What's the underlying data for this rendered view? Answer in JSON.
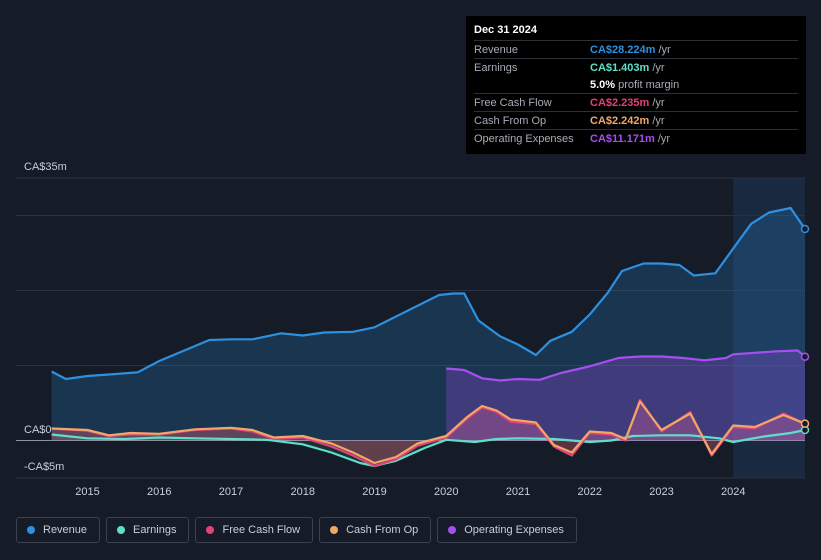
{
  "tooltip": {
    "date": "Dec 31 2024",
    "rows": [
      {
        "label": "Revenue",
        "value": "CA$28.224m",
        "unit": "/yr",
        "color": "#2e90e0"
      },
      {
        "label": "Earnings",
        "value": "CA$1.403m",
        "unit": "/yr",
        "color": "#5ee0c8"
      },
      {
        "label": "",
        "value": "5.0%",
        "unit": "profit margin",
        "color": "#ffffff"
      },
      {
        "label": "Free Cash Flow",
        "value": "CA$2.235m",
        "unit": "/yr",
        "color": "#e0437a"
      },
      {
        "label": "Cash From Op",
        "value": "CA$2.242m",
        "unit": "/yr",
        "color": "#f0a868"
      },
      {
        "label": "Operating Expenses",
        "value": "CA$11.171m",
        "unit": "/yr",
        "color": "#a64ff0"
      }
    ]
  },
  "legend": [
    {
      "label": "Revenue",
      "color": "#2e90e0"
    },
    {
      "label": "Earnings",
      "color": "#5ee0c8"
    },
    {
      "label": "Free Cash Flow",
      "color": "#e0437a"
    },
    {
      "label": "Cash From Op",
      "color": "#f0a868"
    },
    {
      "label": "Operating Expenses",
      "color": "#a64ff0"
    }
  ],
  "chart_data": {
    "type": "area",
    "title": "",
    "ylim": [
      -5,
      35
    ],
    "y_tick_labels": [
      {
        "value": 35,
        "label": "CA$35m"
      },
      {
        "value": 0,
        "label": "CA$0"
      },
      {
        "value": -5,
        "label": "-CA$5m"
      }
    ],
    "x_tick_labels": [
      "2015",
      "2016",
      "2017",
      "2018",
      "2019",
      "2020",
      "2021",
      "2022",
      "2023",
      "2024"
    ],
    "x_ticks": [
      2015,
      2016,
      2017,
      2018,
      2019,
      2020,
      2021,
      2022,
      2023,
      2024
    ],
    "xlim": [
      2014.45,
      2025.0
    ],
    "highlight_from": 2024.0,
    "series": [
      {
        "name": "Revenue",
        "color": "#2e90e0",
        "x": [
          2014.5,
          2014.7,
          2015.0,
          2015.3,
          2015.7,
          2016.0,
          2016.3,
          2016.7,
          2017.0,
          2017.3,
          2017.7,
          2018.0,
          2018.3,
          2018.7,
          2019.0,
          2019.5,
          2019.9,
          2020.1,
          2020.25,
          2020.45,
          2020.75,
          2021.0,
          2021.25,
          2021.45,
          2021.75,
          2022.0,
          2022.25,
          2022.45,
          2022.75,
          2023.0,
          2023.25,
          2023.45,
          2023.75,
          2024.0,
          2024.25,
          2024.5,
          2024.8,
          2025.0
        ],
        "values": [
          9.2,
          8.2,
          8.6,
          8.8,
          9.1,
          10.6,
          11.8,
          13.4,
          13.5,
          13.5,
          14.3,
          14.0,
          14.4,
          14.5,
          15.1,
          17.5,
          19.4,
          19.6,
          19.6,
          16.0,
          13.9,
          12.8,
          11.4,
          13.3,
          14.5,
          16.8,
          19.7,
          22.6,
          23.6,
          23.6,
          23.4,
          22.0,
          22.3,
          25.6,
          28.9,
          30.4,
          31.0,
          28.2
        ]
      },
      {
        "name": "Earnings",
        "color": "#5ee0c8",
        "x": [
          2014.5,
          2015.0,
          2015.5,
          2016.0,
          2016.5,
          2017.0,
          2017.5,
          2018.0,
          2018.4,
          2018.8,
          2019.0,
          2019.3,
          2019.7,
          2020.0,
          2020.4,
          2020.7,
          2021.0,
          2021.5,
          2022.0,
          2022.3,
          2022.6,
          2023.0,
          2023.4,
          2023.8,
          2024.0,
          2024.4,
          2024.8,
          2025.0
        ],
        "values": [
          0.8,
          0.3,
          0.2,
          0.4,
          0.3,
          0.2,
          0.1,
          -0.5,
          -1.6,
          -3.0,
          -3.4,
          -2.7,
          -1.0,
          0.1,
          -0.2,
          0.2,
          0.3,
          0.2,
          -0.2,
          0.0,
          0.6,
          0.7,
          0.7,
          0.3,
          -0.2,
          0.5,
          1.0,
          1.4
        ]
      },
      {
        "name": "Free Cash Flow",
        "color": "#e0437a",
        "x": [
          2014.5,
          2015.0,
          2015.3,
          2015.6,
          2016.0,
          2016.5,
          2017.0,
          2017.3,
          2017.6,
          2018.0,
          2018.4,
          2018.7,
          2019.0,
          2019.3,
          2019.6,
          2020.0,
          2020.3,
          2020.5,
          2020.7,
          2020.9,
          2021.25,
          2021.5,
          2021.75,
          2022.0,
          2022.3,
          2022.5,
          2022.7,
          2023.0,
          2023.4,
          2023.7,
          2024.0,
          2024.3,
          2024.7,
          2025.0
        ],
        "values": [
          1.6,
          1.3,
          0.6,
          0.8,
          0.8,
          1.4,
          1.6,
          1.2,
          0.2,
          0.4,
          -0.8,
          -2.0,
          -3.4,
          -2.5,
          -0.7,
          0.4,
          3.0,
          4.4,
          3.8,
          2.5,
          2.2,
          -0.8,
          -2.0,
          1.0,
          0.8,
          0.0,
          5.4,
          1.2,
          3.8,
          -2.0,
          1.8,
          1.6,
          3.6,
          2.235
        ]
      },
      {
        "name": "Cash From Op",
        "color": "#f0a868",
        "x": [
          2014.5,
          2015.0,
          2015.3,
          2015.6,
          2016.0,
          2016.5,
          2017.0,
          2017.3,
          2017.6,
          2018.0,
          2018.4,
          2018.7,
          2019.0,
          2019.3,
          2019.6,
          2020.0,
          2020.3,
          2020.5,
          2020.7,
          2020.9,
          2021.25,
          2021.5,
          2021.75,
          2022.0,
          2022.3,
          2022.5,
          2022.7,
          2023.0,
          2023.4,
          2023.7,
          2024.0,
          2024.3,
          2024.7,
          2025.0
        ],
        "values": [
          1.6,
          1.4,
          0.7,
          1.0,
          0.9,
          1.5,
          1.7,
          1.4,
          0.4,
          0.6,
          -0.4,
          -1.6,
          -3.0,
          -2.2,
          -0.4,
          0.6,
          3.2,
          4.6,
          4.0,
          2.8,
          2.4,
          -0.6,
          -1.6,
          1.2,
          1.0,
          0.2,
          5.2,
          1.4,
          3.6,
          -1.8,
          2.0,
          1.8,
          3.4,
          2.242
        ]
      },
      {
        "name": "Operating Expenses",
        "color": "#a64ff0",
        "x": [
          2020.0,
          2020.25,
          2020.5,
          2020.75,
          2021.0,
          2021.3,
          2021.6,
          2022.0,
          2022.4,
          2022.7,
          2023.0,
          2023.3,
          2023.6,
          2023.9,
          2024.0,
          2024.3,
          2024.6,
          2024.9,
          2025.0
        ],
        "values": [
          9.6,
          9.4,
          8.3,
          8.0,
          8.2,
          8.1,
          9.0,
          9.9,
          11.0,
          11.2,
          11.2,
          11.0,
          10.7,
          11.0,
          11.5,
          11.7,
          11.9,
          12.0,
          11.171
        ]
      }
    ]
  }
}
